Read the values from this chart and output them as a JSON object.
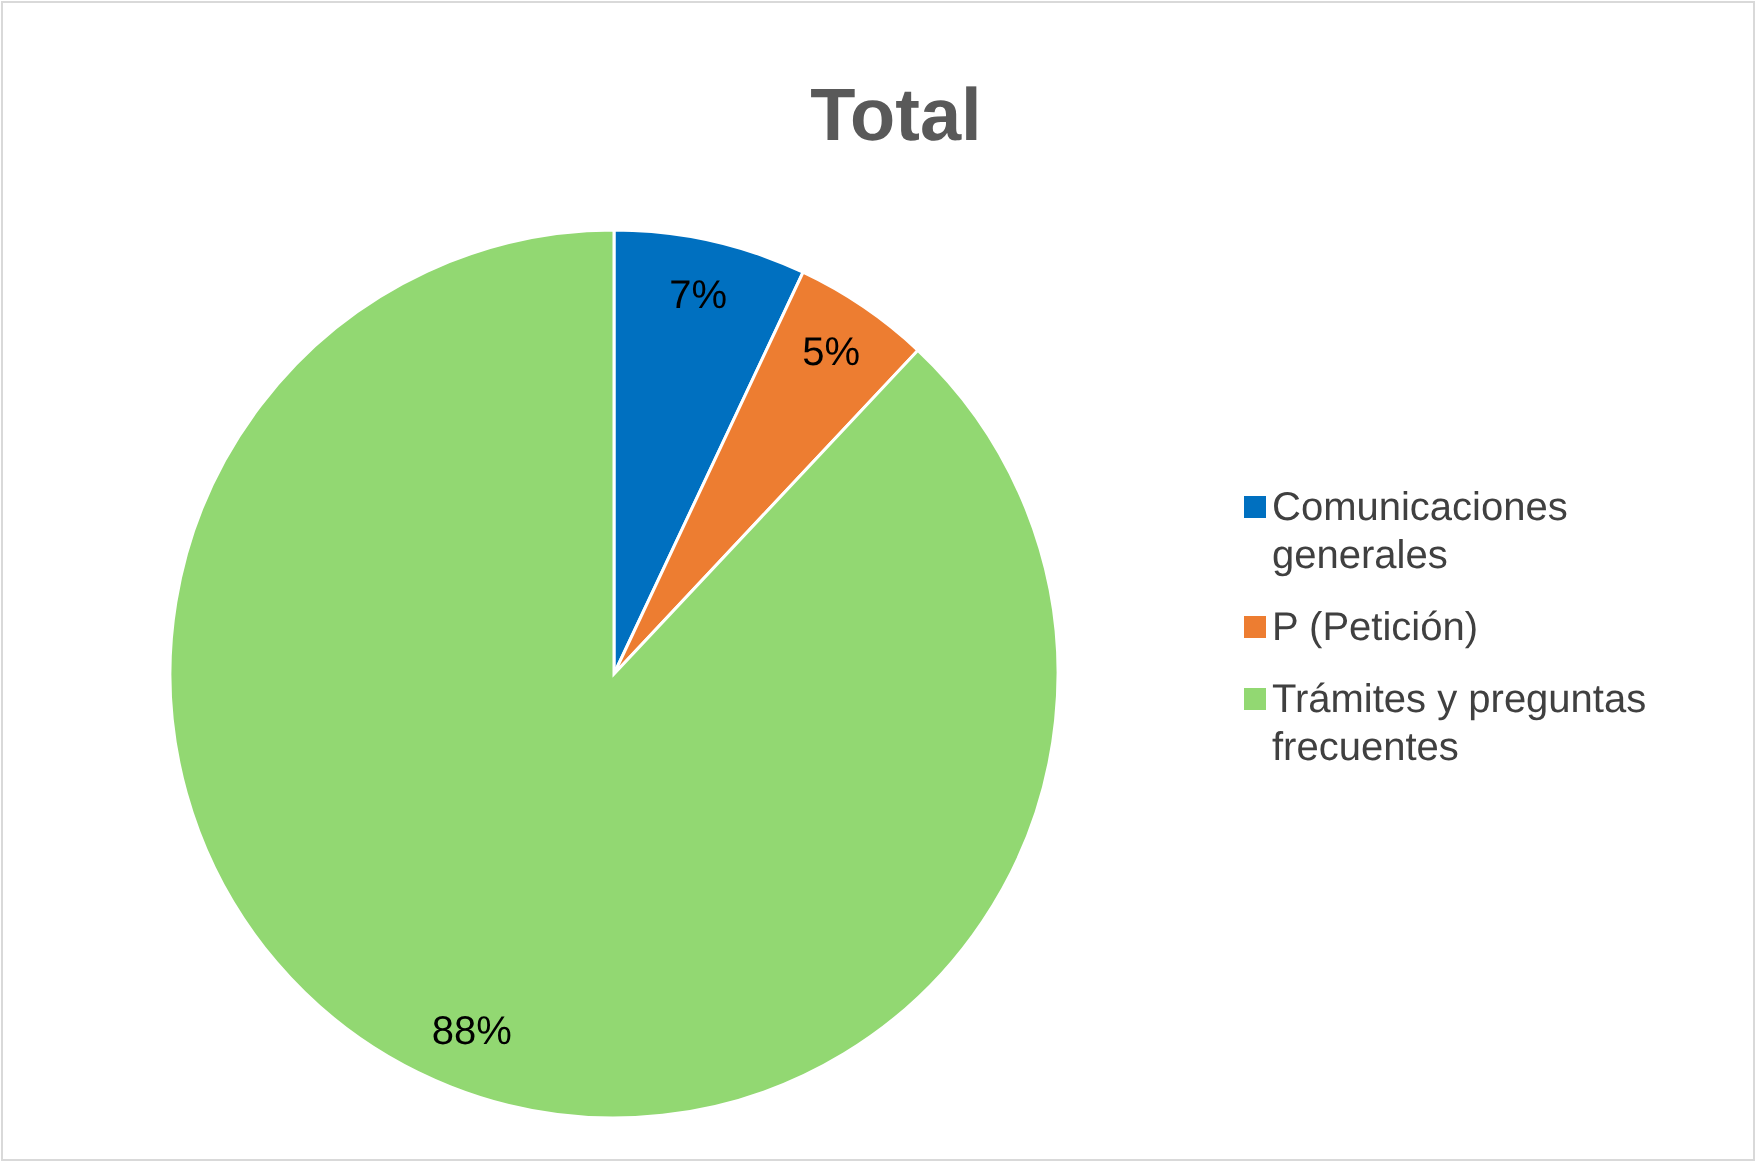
{
  "chart_data": {
    "type": "pie",
    "title": "Total",
    "categories": [
      "Comunicaciones generales",
      "P (Petición)",
      "Trámites y preguntas frecuentes"
    ],
    "values": [
      7,
      5,
      88
    ],
    "colors": [
      "#0070c0",
      "#ed7d31",
      "#92d872"
    ],
    "value_labels": [
      "7%",
      "5%",
      "88%"
    ],
    "legend": "right"
  }
}
